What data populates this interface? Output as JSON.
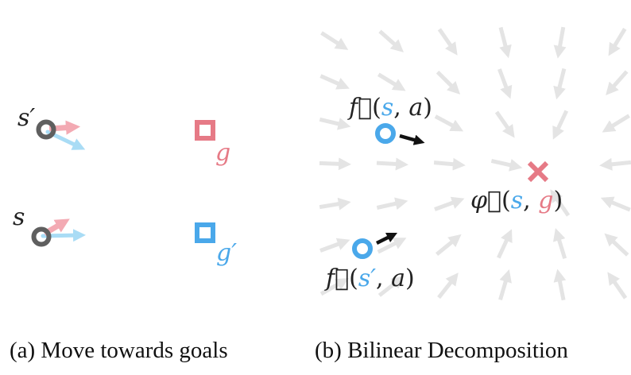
{
  "colors": {
    "blue": "#4aa8ea",
    "pink": "#e67a86",
    "dark_gray": "#5f5f5f",
    "light_blue_arrow": "#a9dcf5",
    "light_pink_arrow": "#f3aab3",
    "field_arrow": "#e4e4e4",
    "black_arrow": "#111111",
    "text": "#222222"
  },
  "panel_a": {
    "caption": "(a) Move towards goals",
    "labels": {
      "s_prime": "s′",
      "s": "s",
      "g": "g",
      "g_prime": "g′"
    }
  },
  "panel_b": {
    "caption": "(b) Bilinear Decomposition",
    "labels": {
      "f_top": {
        "func": "f⃗",
        "open": "(",
        "arg1": "s",
        "comma": ", ",
        "arg2": "a",
        "close": ")"
      },
      "phi": {
        "func": "φ⃗",
        "open": "(",
        "arg1": "s",
        "comma": ", ",
        "arg2": "g",
        "close": ")"
      },
      "f_bottom": {
        "func": "f⃗",
        "open": "(",
        "arg1": "s′",
        "comma": ", ",
        "arg2": "a",
        "close": ")"
      }
    }
  },
  "icons": [
    "circle-state-icon",
    "square-goal-icon",
    "cross-target-icon",
    "arrow-icon"
  ]
}
